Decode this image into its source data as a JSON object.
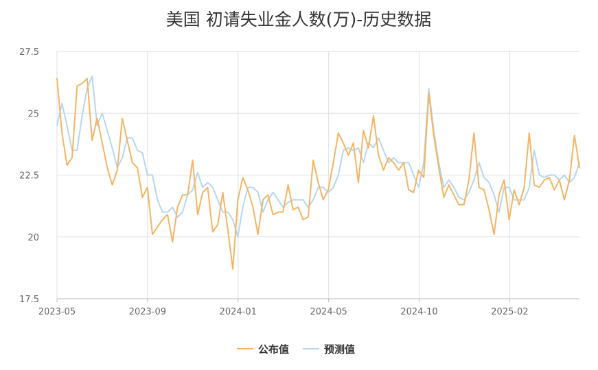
{
  "chart_data": {
    "type": "line",
    "title": "美国 初请失业金人数(万)-历史数据",
    "xlabel": "",
    "ylabel": "",
    "ylim": [
      17.5,
      27.5
    ],
    "yticks": [
      "27.5",
      "25",
      "22.5",
      "20",
      "17.5"
    ],
    "xtick_labels": [
      "2023-05",
      "2023-09",
      "2024-01",
      "2024-05",
      "2024-10",
      "2025-02"
    ],
    "grid": true,
    "legend_position": "bottom",
    "series": [
      {
        "name": "公布值",
        "color": "#f7b462",
        "values": [
          26.4,
          24.2,
          22.9,
          23.2,
          26.1,
          26.2,
          26.4,
          23.9,
          24.8,
          23.8,
          22.8,
          22.1,
          22.7,
          24.8,
          23.9,
          23.0,
          22.8,
          21.6,
          22.0,
          20.1,
          20.4,
          20.7,
          20.9,
          19.8,
          21.2,
          21.7,
          21.7,
          23.1,
          20.9,
          21.8,
          22.0,
          20.2,
          20.5,
          21.8,
          20.3,
          18.7,
          21.5,
          22.4,
          21.9,
          21.2,
          20.1,
          21.5,
          21.7,
          20.9,
          21.0,
          21.0,
          22.1,
          21.1,
          21.2,
          20.7,
          20.8,
          23.1,
          22.2,
          21.5,
          21.9,
          23.0,
          24.2,
          23.8,
          23.3,
          23.8,
          22.2,
          24.3,
          23.6,
          24.9,
          23.3,
          22.7,
          23.2,
          23.0,
          22.7,
          23.0,
          21.9,
          21.8,
          22.7,
          22.4,
          25.8,
          24.1,
          22.8,
          21.6,
          22.1,
          21.7,
          21.3,
          21.3,
          22.3,
          24.2,
          22.0,
          21.9,
          21.1,
          20.1,
          21.7,
          22.3,
          20.7,
          21.9,
          21.3,
          22.0,
          24.2,
          22.1,
          22.0,
          22.3,
          22.4,
          21.9,
          22.3,
          21.5,
          22.3,
          24.1,
          22.8
        ]
      },
      {
        "name": "预测值",
        "color": "#b7d6ec",
        "values": [
          24.5,
          25.4,
          24.5,
          23.5,
          23.5,
          24.9,
          26.0,
          26.5,
          24.5,
          25.0,
          24.3,
          23.6,
          22.8,
          23.2,
          24.0,
          24.0,
          23.5,
          23.4,
          22.5,
          22.5,
          21.5,
          21.0,
          21.0,
          21.2,
          20.8,
          21.0,
          21.7,
          21.9,
          22.6,
          22.0,
          22.2,
          22.0,
          21.5,
          21.0,
          21.0,
          20.7,
          20.0,
          21.2,
          22.0,
          22.0,
          21.8,
          21.0,
          21.5,
          21.8,
          21.5,
          21.2,
          21.4,
          21.5,
          21.5,
          21.5,
          21.2,
          21.5,
          22.0,
          22.0,
          21.8,
          22.0,
          22.5,
          23.5,
          23.6,
          23.5,
          23.6,
          23.0,
          23.8,
          23.6,
          24.0,
          23.5,
          23.0,
          23.2,
          23.0,
          23.0,
          23.0,
          22.5,
          22.0,
          23.0,
          26.0,
          24.3,
          23.0,
          22.0,
          22.3,
          22.0,
          21.6,
          21.5,
          21.8,
          22.3,
          23.0,
          22.4,
          22.2,
          21.7,
          21.0,
          22.0,
          22.0,
          21.5,
          21.5,
          21.5,
          22.0,
          23.5,
          22.5,
          22.4,
          22.5,
          22.5,
          22.3,
          22.5,
          22.2,
          22.4,
          23.0
        ]
      }
    ]
  }
}
